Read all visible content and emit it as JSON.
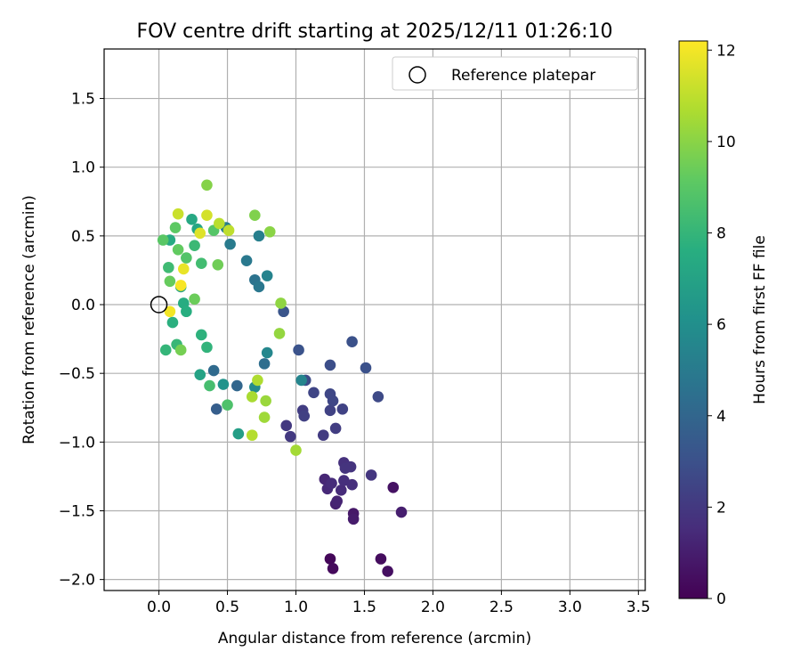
{
  "chart_data": {
    "type": "scatter",
    "title": "FOV centre drift starting at 2025/12/11 01:26:10",
    "xlabel": "Angular distance from reference (arcmin)",
    "ylabel": "Rotation from reference (arcmin)",
    "xlim": [
      -0.4,
      3.55
    ],
    "ylim": [
      -2.08,
      1.86
    ],
    "xticks": [
      0.0,
      0.5,
      1.0,
      1.5,
      2.0,
      2.5,
      3.0,
      3.5
    ],
    "xtick_labels": [
      "0.0",
      "0.5",
      "1.0",
      "1.5",
      "2.0",
      "2.5",
      "3.0",
      "3.5"
    ],
    "yticks": [
      -2.0,
      -1.5,
      -1.0,
      -0.5,
      0.0,
      0.5,
      1.0,
      1.5
    ],
    "ytick_labels": [
      "−2.0",
      "−1.5",
      "−1.0",
      "−0.5",
      "0.0",
      "0.5",
      "1.0",
      "1.5"
    ],
    "grid": true,
    "legend": {
      "placement": "top-right",
      "entries": [
        "Reference platepar"
      ]
    },
    "reference_point": {
      "x": 0.0,
      "y": 0.0,
      "marker": "open-circle"
    },
    "colorbar": {
      "label": "Hours from first FF file",
      "colormap": "viridis",
      "range": [
        0,
        12.2
      ],
      "ticks": [
        0,
        2,
        4,
        6,
        8,
        10,
        12
      ],
      "tick_labels": [
        "0",
        "2",
        "4",
        "6",
        "8",
        "10",
        "12"
      ]
    },
    "points": [
      {
        "x": 1.25,
        "y": -1.85,
        "h": 0.2
      },
      {
        "x": 1.27,
        "y": -1.92,
        "h": 0.3
      },
      {
        "x": 1.62,
        "y": -1.85,
        "h": 0.4
      },
      {
        "x": 1.67,
        "y": -1.94,
        "h": 0.5
      },
      {
        "x": 1.71,
        "y": -1.33,
        "h": 0.6
      },
      {
        "x": 1.42,
        "y": -1.52,
        "h": 0.8
      },
      {
        "x": 1.42,
        "y": -1.56,
        "h": 0.9
      },
      {
        "x": 1.77,
        "y": -1.51,
        "h": 1.0
      },
      {
        "x": 1.29,
        "y": -1.45,
        "h": 1.1
      },
      {
        "x": 1.3,
        "y": -1.43,
        "h": 1.2
      },
      {
        "x": 1.21,
        "y": -1.27,
        "h": 1.3
      },
      {
        "x": 1.23,
        "y": -1.34,
        "h": 1.4
      },
      {
        "x": 1.26,
        "y": -1.3,
        "h": 1.5
      },
      {
        "x": 1.33,
        "y": -1.35,
        "h": 1.5
      },
      {
        "x": 1.35,
        "y": -1.28,
        "h": 1.6
      },
      {
        "x": 1.41,
        "y": -1.31,
        "h": 1.6
      },
      {
        "x": 1.35,
        "y": -1.15,
        "h": 1.7
      },
      {
        "x": 1.36,
        "y": -1.19,
        "h": 1.8
      },
      {
        "x": 1.4,
        "y": -1.18,
        "h": 1.8
      },
      {
        "x": 1.55,
        "y": -1.24,
        "h": 1.9
      },
      {
        "x": 0.93,
        "y": -0.88,
        "h": 2.0
      },
      {
        "x": 0.96,
        "y": -0.96,
        "h": 2.0
      },
      {
        "x": 1.2,
        "y": -0.95,
        "h": 2.1
      },
      {
        "x": 1.29,
        "y": -0.9,
        "h": 2.2
      },
      {
        "x": 1.05,
        "y": -0.77,
        "h": 2.2
      },
      {
        "x": 1.06,
        "y": -0.81,
        "h": 2.3
      },
      {
        "x": 1.25,
        "y": -0.77,
        "h": 2.4
      },
      {
        "x": 1.34,
        "y": -0.76,
        "h": 2.4
      },
      {
        "x": 1.13,
        "y": -0.64,
        "h": 2.5
      },
      {
        "x": 1.25,
        "y": -0.65,
        "h": 2.6
      },
      {
        "x": 1.27,
        "y": -0.7,
        "h": 2.6
      },
      {
        "x": 1.6,
        "y": -0.67,
        "h": 2.7
      },
      {
        "x": 1.07,
        "y": -0.55,
        "h": 2.8
      },
      {
        "x": 1.25,
        "y": -0.44,
        "h": 2.9
      },
      {
        "x": 1.51,
        "y": -0.46,
        "h": 3.0
      },
      {
        "x": 1.41,
        "y": -0.27,
        "h": 3.0
      },
      {
        "x": 1.02,
        "y": -0.33,
        "h": 3.1
      },
      {
        "x": 0.91,
        "y": -0.05,
        "h": 3.2
      },
      {
        "x": 0.42,
        "y": -0.76,
        "h": 3.6
      },
      {
        "x": 0.57,
        "y": -0.59,
        "h": 4.0
      },
      {
        "x": 0.4,
        "y": -0.48,
        "h": 4.2
      },
      {
        "x": 0.77,
        "y": -0.43,
        "h": 4.4
      },
      {
        "x": 0.7,
        "y": 0.18,
        "h": 4.6
      },
      {
        "x": 0.73,
        "y": 0.13,
        "h": 4.8
      },
      {
        "x": 0.64,
        "y": 0.32,
        "h": 4.9
      },
      {
        "x": 0.52,
        "y": 0.44,
        "h": 5.0
      },
      {
        "x": 0.49,
        "y": 0.56,
        "h": 5.1
      },
      {
        "x": 0.73,
        "y": 0.5,
        "h": 5.2
      },
      {
        "x": 0.79,
        "y": 0.21,
        "h": 5.4
      },
      {
        "x": 1.04,
        "y": -0.55,
        "h": 5.5
      },
      {
        "x": 0.79,
        "y": -0.35,
        "h": 5.6
      },
      {
        "x": 0.7,
        "y": -0.6,
        "h": 5.8
      },
      {
        "x": 0.47,
        "y": -0.58,
        "h": 6.2
      },
      {
        "x": 0.58,
        "y": -0.94,
        "h": 6.8
      },
      {
        "x": 0.3,
        "y": -0.51,
        "h": 7.0
      },
      {
        "x": 0.16,
        "y": 0.13,
        "h": 7.1
      },
      {
        "x": 0.28,
        "y": 0.55,
        "h": 7.2
      },
      {
        "x": 0.24,
        "y": 0.62,
        "h": 7.3
      },
      {
        "x": 0.08,
        "y": 0.47,
        "h": 7.4
      },
      {
        "x": 0.18,
        "y": 0.01,
        "h": 7.5
      },
      {
        "x": 0.2,
        "y": -0.05,
        "h": 7.6
      },
      {
        "x": 0.1,
        "y": -0.13,
        "h": 7.7
      },
      {
        "x": 0.31,
        "y": -0.22,
        "h": 7.8
      },
      {
        "x": 0.35,
        "y": -0.31,
        "h": 7.9
      },
      {
        "x": 0.05,
        "y": -0.33,
        "h": 8.0
      },
      {
        "x": 0.13,
        "y": -0.29,
        "h": 8.1
      },
      {
        "x": 0.26,
        "y": 0.43,
        "h": 8.2
      },
      {
        "x": 0.07,
        "y": 0.27,
        "h": 8.3
      },
      {
        "x": 0.31,
        "y": 0.3,
        "h": 8.4
      },
      {
        "x": 0.37,
        "y": -0.59,
        "h": 8.5
      },
      {
        "x": 0.5,
        "y": -0.73,
        "h": 8.7
      },
      {
        "x": 0.2,
        "y": 0.34,
        "h": 8.8
      },
      {
        "x": 0.4,
        "y": 0.54,
        "h": 8.9
      },
      {
        "x": 0.03,
        "y": 0.47,
        "h": 9.0
      },
      {
        "x": 0.12,
        "y": 0.56,
        "h": 9.1
      },
      {
        "x": 0.14,
        "y": 0.4,
        "h": 9.2
      },
      {
        "x": 0.08,
        "y": 0.17,
        "h": 9.3
      },
      {
        "x": 0.26,
        "y": 0.04,
        "h": 9.4
      },
      {
        "x": 0.43,
        "y": 0.29,
        "h": 9.5
      },
      {
        "x": 0.16,
        "y": -0.33,
        "h": 9.6
      },
      {
        "x": 0.7,
        "y": 0.65,
        "h": 9.8
      },
      {
        "x": 0.35,
        "y": 0.87,
        "h": 9.9
      },
      {
        "x": 0.81,
        "y": 0.53,
        "h": 10.0
      },
      {
        "x": 0.89,
        "y": 0.01,
        "h": 10.1
      },
      {
        "x": 0.88,
        "y": -0.21,
        "h": 10.2
      },
      {
        "x": 0.78,
        "y": -0.7,
        "h": 10.3
      },
      {
        "x": 0.77,
        "y": -0.82,
        "h": 10.4
      },
      {
        "x": 1.0,
        "y": -1.06,
        "h": 10.5
      },
      {
        "x": 0.68,
        "y": -0.67,
        "h": 10.6
      },
      {
        "x": 0.72,
        "y": -0.55,
        "h": 10.7
      },
      {
        "x": 0.68,
        "y": -0.95,
        "h": 10.8
      },
      {
        "x": 0.44,
        "y": 0.59,
        "h": 10.9
      },
      {
        "x": 0.51,
        "y": 0.54,
        "h": 11.0
      },
      {
        "x": 0.14,
        "y": 0.66,
        "h": 11.2
      },
      {
        "x": 0.35,
        "y": 0.65,
        "h": 11.4
      },
      {
        "x": 0.3,
        "y": 0.52,
        "h": 11.6
      },
      {
        "x": 0.18,
        "y": 0.26,
        "h": 11.8
      },
      {
        "x": 0.08,
        "y": -0.05,
        "h": 12.0
      },
      {
        "x": 0.16,
        "y": 0.14,
        "h": 12.1
      }
    ]
  }
}
